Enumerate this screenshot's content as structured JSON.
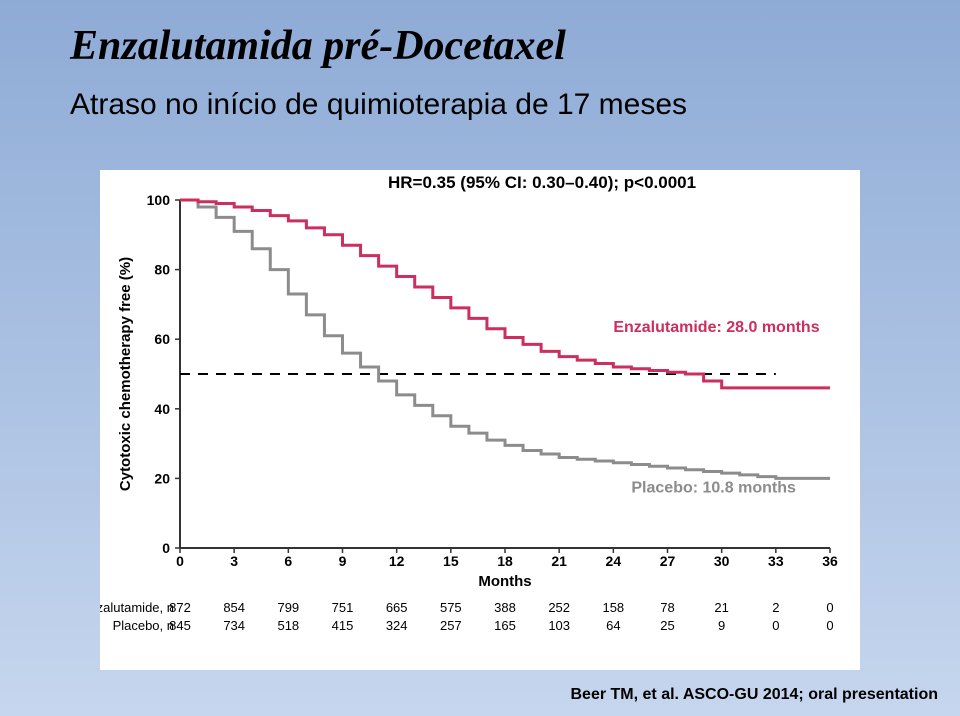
{
  "title": "Enzalutamida pré-Docetaxel",
  "subtitle": "Atraso no início de quimioterapia de 17 meses",
  "citation": "Beer TM, et al. ASCO-GU 2014; oral presentation",
  "chart": {
    "type": "kaplan-meier",
    "hr_text": "HR=0.35 (95% CI: 0.30–0.40); p<0.0001",
    "y_label": "Cytotoxic chemotherapy free (%)",
    "x_label": "Months",
    "x_ticks": [
      0,
      3,
      6,
      9,
      12,
      15,
      18,
      21,
      24,
      27,
      30,
      33,
      36
    ],
    "y_ticks": [
      0,
      20,
      40,
      60,
      80,
      100
    ],
    "xlim": [
      0,
      36
    ],
    "ylim": [
      0,
      100
    ],
    "ref_line_y": 50,
    "background_color": "#ffffff",
    "axis_color": "#333333",
    "series": {
      "enz": {
        "name": "Enzalutamide",
        "color": "#cc2e5e",
        "line_width": 3,
        "label": "Enzalutamide: 28.0 months",
        "points": [
          [
            0,
            100
          ],
          [
            1,
            99.5
          ],
          [
            2,
            99
          ],
          [
            3,
            98
          ],
          [
            4,
            97
          ],
          [
            5,
            95.5
          ],
          [
            6,
            94
          ],
          [
            7,
            92
          ],
          [
            8,
            90
          ],
          [
            9,
            87
          ],
          [
            10,
            84
          ],
          [
            11,
            81
          ],
          [
            12,
            78
          ],
          [
            13,
            75
          ],
          [
            14,
            72
          ],
          [
            15,
            69
          ],
          [
            16,
            66
          ],
          [
            17,
            63
          ],
          [
            18,
            60.5
          ],
          [
            19,
            58.5
          ],
          [
            20,
            56.5
          ],
          [
            21,
            55
          ],
          [
            22,
            54
          ],
          [
            23,
            53
          ],
          [
            24,
            52
          ],
          [
            25,
            51.5
          ],
          [
            26,
            51
          ],
          [
            27,
            50.5
          ],
          [
            28,
            50
          ],
          [
            29,
            48
          ],
          [
            30,
            46
          ],
          [
            31,
            46
          ],
          [
            32,
            46
          ],
          [
            33,
            46
          ],
          [
            34,
            46
          ],
          [
            35,
            46
          ],
          [
            36,
            46
          ]
        ]
      },
      "plc": {
        "name": "Placebo",
        "color": "#8c8c8c",
        "line_width": 3,
        "label": "Placebo: 10.8 months",
        "points": [
          [
            0,
            100
          ],
          [
            1,
            98
          ],
          [
            2,
            95
          ],
          [
            3,
            91
          ],
          [
            4,
            86
          ],
          [
            5,
            80
          ],
          [
            6,
            73
          ],
          [
            7,
            67
          ],
          [
            8,
            61
          ],
          [
            9,
            56
          ],
          [
            10,
            52
          ],
          [
            11,
            48
          ],
          [
            12,
            44
          ],
          [
            13,
            41
          ],
          [
            14,
            38
          ],
          [
            15,
            35
          ],
          [
            16,
            33
          ],
          [
            17,
            31
          ],
          [
            18,
            29.5
          ],
          [
            19,
            28
          ],
          [
            20,
            27
          ],
          [
            21,
            26
          ],
          [
            22,
            25.5
          ],
          [
            23,
            25
          ],
          [
            24,
            24.5
          ],
          [
            25,
            24
          ],
          [
            26,
            23.5
          ],
          [
            27,
            23
          ],
          [
            28,
            22.5
          ],
          [
            29,
            22
          ],
          [
            30,
            21.5
          ],
          [
            31,
            21
          ],
          [
            32,
            20.5
          ],
          [
            33,
            20
          ],
          [
            34,
            20
          ],
          [
            35,
            20
          ],
          [
            36,
            20
          ]
        ]
      }
    },
    "risk_table": {
      "rows": [
        {
          "label": "Enzalutamide, n",
          "values": [
            872,
            854,
            799,
            751,
            665,
            575,
            388,
            252,
            158,
            78,
            21,
            2,
            0
          ]
        },
        {
          "label": "Placebo, n",
          "values": [
            845,
            734,
            518,
            415,
            324,
            257,
            165,
            103,
            64,
            25,
            9,
            0,
            0
          ]
        }
      ]
    }
  }
}
